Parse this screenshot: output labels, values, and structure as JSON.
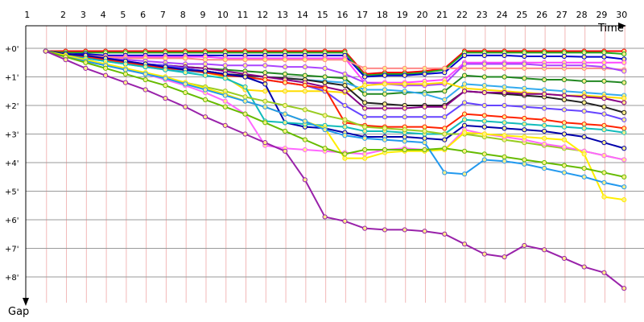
{
  "chart_data": {
    "type": "line",
    "title": "",
    "xlabel": "Time",
    "ylabel": "Gap",
    "x_tick_labels": [
      "1",
      "2",
      "3",
      "4",
      "5",
      "6",
      "7",
      "8",
      "9",
      "10",
      "11",
      "12",
      "13",
      "14",
      "15",
      "16",
      "17",
      "18",
      "19",
      "20",
      "21",
      "22",
      "23",
      "24",
      "25",
      "26",
      "27",
      "28",
      "29",
      "30"
    ],
    "y_tick_labels": [
      "+0'",
      "+1'",
      "+2'",
      "+3'",
      "+4'",
      "+5'",
      "+6'",
      "+7'",
      "+8'"
    ],
    "xlim": [
      0,
      31
    ],
    "ylim": [
      0,
      9
    ],
    "grid": true,
    "legend": "none",
    "series": [
      {
        "color": "#ff0000",
        "values": [
          0.1,
          0.1,
          0.1,
          0.1,
          0.1,
          0.1,
          0.1,
          0.1,
          0.1,
          0.1,
          0.1,
          0.1,
          0.1,
          0.1,
          0.1,
          0.1,
          0.9,
          0.85,
          0.85,
          0.8,
          0.7,
          0.1,
          0.1,
          0.1,
          0.1,
          0.1,
          0.1,
          0.1,
          0.1,
          0.1
        ]
      },
      {
        "color": "#22aa22",
        "values": [
          0.1,
          0.15,
          0.15,
          0.15,
          0.15,
          0.15,
          0.15,
          0.15,
          0.15,
          0.15,
          0.15,
          0.15,
          0.15,
          0.15,
          0.15,
          0.15,
          0.95,
          0.9,
          0.9,
          0.85,
          0.75,
          0.15,
          0.15,
          0.15,
          0.15,
          0.15,
          0.15,
          0.15,
          0.15,
          0.2
        ]
      },
      {
        "color": "#0000cc",
        "values": [
          0.1,
          0.2,
          0.2,
          0.25,
          0.25,
          0.25,
          0.25,
          0.25,
          0.25,
          0.25,
          0.25,
          0.25,
          0.25,
          0.25,
          0.25,
          0.25,
          1.0,
          0.95,
          0.95,
          0.9,
          0.85,
          0.25,
          0.25,
          0.25,
          0.28,
          0.28,
          0.28,
          0.3,
          0.3,
          0.38
        ]
      },
      {
        "color": "#ff44ff",
        "values": [
          0.1,
          0.25,
          0.3,
          0.3,
          0.3,
          0.3,
          0.3,
          0.3,
          0.3,
          0.35,
          0.35,
          0.35,
          0.35,
          0.35,
          0.35,
          0.35,
          1.2,
          1.2,
          1.2,
          1.15,
          1.1,
          0.5,
          0.5,
          0.5,
          0.5,
          0.5,
          0.5,
          0.5,
          0.5,
          0.5
        ]
      },
      {
        "color": "#ff8888",
        "values": [
          0.1,
          0.2,
          0.25,
          0.3,
          0.35,
          0.35,
          0.35,
          0.35,
          0.4,
          0.4,
          0.4,
          0.4,
          0.4,
          0.4,
          0.4,
          0.4,
          0.7,
          0.7,
          0.7,
          0.7,
          0.7,
          0.7,
          0.7,
          0.7,
          0.7,
          0.7,
          0.7,
          0.7,
          0.7,
          0.75
        ]
      },
      {
        "color": "#aa44ff",
        "values": [
          0.1,
          0.2,
          0.3,
          0.35,
          0.4,
          0.45,
          0.5,
          0.55,
          0.55,
          0.6,
          0.6,
          0.6,
          0.65,
          0.65,
          0.7,
          0.9,
          1.2,
          1.25,
          1.3,
          1.3,
          1.25,
          0.55,
          0.55,
          0.55,
          0.55,
          0.6,
          0.6,
          0.6,
          0.65,
          0.8
        ]
      },
      {
        "color": "#228822",
        "values": [
          0.1,
          0.2,
          0.3,
          0.4,
          0.5,
          0.55,
          0.6,
          0.65,
          0.7,
          0.75,
          0.8,
          0.85,
          0.9,
          0.95,
          1.0,
          1.05,
          1.6,
          1.6,
          1.55,
          1.55,
          1.5,
          0.95,
          1.0,
          1.0,
          1.05,
          1.1,
          1.1,
          1.15,
          1.15,
          1.2
        ]
      },
      {
        "color": "#33aaee",
        "values": [
          0.1,
          0.25,
          0.35,
          0.45,
          0.55,
          0.65,
          0.75,
          0.8,
          0.85,
          0.9,
          0.95,
          1.0,
          1.05,
          1.1,
          1.15,
          1.2,
          1.45,
          1.45,
          1.5,
          1.6,
          1.8,
          1.25,
          1.3,
          1.35,
          1.4,
          1.45,
          1.5,
          1.55,
          1.6,
          1.65
        ]
      },
      {
        "color": "#ffdd00",
        "values": [
          0.1,
          0.2,
          0.3,
          0.4,
          0.5,
          0.6,
          0.7,
          0.75,
          0.85,
          1.0,
          1.45,
          1.5,
          1.5,
          1.5,
          1.5,
          1.55,
          1.3,
          1.25,
          1.25,
          1.25,
          1.2,
          1.4,
          1.45,
          1.5,
          1.55,
          1.6,
          1.65,
          1.65,
          1.7,
          1.75
        ]
      },
      {
        "color": "#222222",
        "values": [
          0.1,
          0.2,
          0.3,
          0.4,
          0.5,
          0.6,
          0.65,
          0.75,
          0.8,
          0.9,
          0.95,
          1.0,
          1.05,
          1.1,
          1.2,
          1.3,
          1.9,
          1.95,
          2.0,
          2.0,
          2.0,
          1.5,
          1.55,
          1.6,
          1.65,
          1.7,
          1.8,
          1.9,
          2.05,
          2.25
        ]
      },
      {
        "color": "#880088",
        "values": [
          0.1,
          0.2,
          0.3,
          0.4,
          0.5,
          0.55,
          0.6,
          0.65,
          0.7,
          0.8,
          0.9,
          1.0,
          1.1,
          1.2,
          1.35,
          1.5,
          2.1,
          2.1,
          2.1,
          2.05,
          2.05,
          1.5,
          1.55,
          1.55,
          1.6,
          1.6,
          1.65,
          1.7,
          1.75,
          1.9
        ]
      },
      {
        "color": "#6644ff",
        "values": [
          0.1,
          0.2,
          0.3,
          0.35,
          0.45,
          0.55,
          0.6,
          0.7,
          0.8,
          0.9,
          1.0,
          1.1,
          1.2,
          1.3,
          1.5,
          2.0,
          2.4,
          2.4,
          2.4,
          2.4,
          2.4,
          1.9,
          2.0,
          2.0,
          2.05,
          2.1,
          2.15,
          2.2,
          2.3,
          2.5
        ]
      },
      {
        "color": "#ff2200",
        "values": [
          0.1,
          0.2,
          0.3,
          0.4,
          0.5,
          0.6,
          0.7,
          0.75,
          0.85,
          0.95,
          1.0,
          1.1,
          1.2,
          1.3,
          1.4,
          2.6,
          2.7,
          2.75,
          2.75,
          2.75,
          2.8,
          2.3,
          2.35,
          2.4,
          2.45,
          2.5,
          2.6,
          2.65,
          2.7,
          2.8
        ]
      },
      {
        "color": "#0000aa",
        "values": [
          0.1,
          0.2,
          0.25,
          0.35,
          0.45,
          0.55,
          0.65,
          0.75,
          0.8,
          0.9,
          1.0,
          1.25,
          2.6,
          2.75,
          2.8,
          2.95,
          3.1,
          3.1,
          3.1,
          3.15,
          3.2,
          2.7,
          2.75,
          2.8,
          2.85,
          2.9,
          3.0,
          3.1,
          3.3,
          3.5
        ]
      },
      {
        "color": "#11bbbb",
        "values": [
          0.1,
          0.25,
          0.35,
          0.45,
          0.55,
          0.65,
          0.75,
          0.85,
          0.95,
          1.05,
          1.35,
          2.55,
          2.6,
          2.65,
          2.7,
          2.75,
          2.9,
          2.9,
          2.95,
          3.0,
          3.0,
          2.5,
          2.55,
          2.6,
          2.65,
          2.7,
          2.75,
          2.8,
          2.85,
          2.95
        ]
      },
      {
        "color": "#99cc22",
        "values": [
          0.1,
          0.3,
          0.45,
          0.6,
          0.75,
          0.9,
          1.05,
          1.2,
          1.35,
          1.5,
          1.7,
          1.85,
          2.0,
          2.15,
          2.35,
          2.5,
          2.75,
          2.8,
          2.85,
          2.9,
          3.0,
          3.0,
          3.1,
          3.2,
          3.3,
          3.4,
          3.5,
          3.6,
          3.75,
          3.9
        ]
      },
      {
        "color": "#ff66ff",
        "values": [
          0.1,
          0.3,
          0.45,
          0.6,
          0.75,
          0.9,
          1.1,
          1.3,
          1.55,
          1.85,
          2.3,
          3.4,
          3.5,
          3.55,
          3.6,
          3.65,
          3.7,
          3.55,
          3.5,
          3.55,
          3.55,
          2.85,
          3.0,
          3.1,
          3.2,
          3.35,
          3.45,
          3.6,
          3.75,
          3.9
        ]
      },
      {
        "color": "#ffee00",
        "values": [
          0.1,
          0.25,
          0.4,
          0.55,
          0.7,
          0.85,
          1.0,
          1.2,
          1.4,
          1.6,
          1.85,
          2.05,
          2.3,
          2.55,
          2.8,
          3.85,
          3.85,
          3.65,
          3.6,
          3.6,
          3.55,
          2.95,
          3.0,
          3.05,
          3.1,
          3.15,
          3.2,
          3.7,
          5.2,
          5.3
        ]
      },
      {
        "color": "#2299ee",
        "values": [
          0.1,
          0.3,
          0.45,
          0.6,
          0.75,
          0.9,
          1.05,
          1.25,
          1.45,
          1.65,
          1.85,
          2.05,
          2.3,
          2.55,
          2.85,
          3.05,
          3.15,
          3.2,
          3.25,
          3.3,
          4.35,
          4.4,
          3.9,
          3.95,
          4.05,
          4.2,
          4.35,
          4.5,
          4.7,
          4.85
        ]
      },
      {
        "color": "#66bb00",
        "values": [
          0.1,
          0.3,
          0.5,
          0.7,
          0.9,
          1.1,
          1.3,
          1.55,
          1.8,
          2.05,
          2.3,
          2.6,
          2.9,
          3.2,
          3.5,
          3.7,
          3.55,
          3.55,
          3.55,
          3.55,
          3.5,
          3.6,
          3.7,
          3.8,
          3.9,
          4.0,
          4.1,
          4.2,
          4.35,
          4.5
        ]
      },
      {
        "color": "#9922aa",
        "values": [
          0.1,
          0.4,
          0.7,
          0.95,
          1.2,
          1.45,
          1.75,
          2.05,
          2.4,
          2.7,
          3.0,
          3.3,
          3.6,
          4.6,
          5.9,
          6.05,
          6.3,
          6.35,
          6.35,
          6.4,
          6.5,
          6.85,
          7.2,
          7.3,
          6.9,
          7.05,
          7.35,
          7.65,
          7.85,
          8.4
        ]
      }
    ]
  }
}
